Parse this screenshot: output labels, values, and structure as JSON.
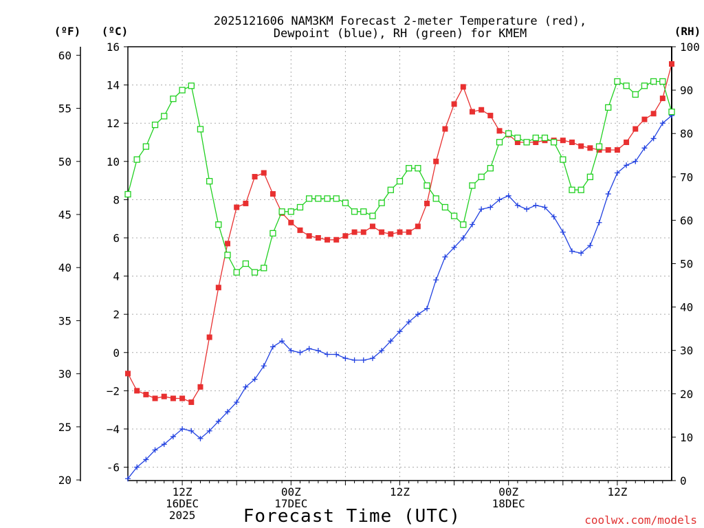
{
  "title_line1": "2025121606 NAM3KM Forecast 2-meter Temperature (red),",
  "title_line2": "Dewpoint (blue), RH (green) for KMEM",
  "unit_f": "(ºF)",
  "unit_c": "(ºC)",
  "unit_rh": "(RH)",
  "x_title": "Forecast Time (UTC)",
  "credit": "coolwx.com/models",
  "x_ticks": [
    {
      "hour": 6,
      "lines": [
        "12Z",
        "16DEC",
        "2025"
      ]
    },
    {
      "hour": 18,
      "lines": [
        "00Z",
        "17DEC"
      ]
    },
    {
      "hour": 30,
      "lines": [
        "12Z"
      ]
    },
    {
      "hour": 42,
      "lines": [
        "00Z",
        "18DEC"
      ]
    },
    {
      "hour": 54,
      "lines": [
        "12Z"
      ]
    }
  ],
  "y_ticks_c": [
    "-6",
    "−4",
    "−2",
    "0",
    "2",
    "4",
    "6",
    "8",
    "10",
    "12",
    "14",
    "16"
  ],
  "y_ticks_f": [
    "20",
    "25",
    "30",
    "35",
    "40",
    "45",
    "50",
    "55",
    "60"
  ],
  "y_ticks_rh": [
    "0",
    "10",
    "20",
    "30",
    "40",
    "50",
    "60",
    "70",
    "80",
    "90",
    "100"
  ],
  "chart_data": {
    "type": "line",
    "title": "2025121606 NAM3KM Forecast 2-meter Temperature (red), Dewpoint (blue), RH (green) for KMEM",
    "xlabel": "Forecast Time (UTC)",
    "x_unit": "forecast hour from 2025-12-16 06Z",
    "xlim": [
      0,
      60
    ],
    "ylim_c": [
      -6.7,
      16
    ],
    "ylim_f": [
      19.94,
      60.8
    ],
    "ylim_rh": [
      0,
      100
    ],
    "grid": true,
    "series": [
      {
        "name": "2-meter Temperature",
        "color": "#e83030",
        "marker": "filled-square",
        "axis": "C",
        "x": [
          0,
          1,
          2,
          3,
          4,
          5,
          6,
          7,
          8,
          9,
          10,
          11,
          12,
          13,
          14,
          15,
          16,
          17,
          18,
          19,
          20,
          21,
          22,
          23,
          24,
          25,
          26,
          27,
          28,
          29,
          30,
          31,
          32,
          33,
          34,
          35,
          36,
          37,
          38,
          39,
          40,
          41,
          42,
          43,
          44,
          45,
          46,
          47,
          48,
          49,
          50,
          51,
          52,
          53,
          54,
          55,
          56,
          57,
          58,
          59,
          60
        ],
        "values": [
          -1.1,
          -2.0,
          -2.2,
          -2.4,
          -2.3,
          -2.4,
          -2.4,
          -2.6,
          -1.8,
          0.8,
          3.4,
          5.7,
          7.6,
          7.8,
          9.2,
          9.4,
          8.3,
          7.3,
          6.8,
          6.4,
          6.1,
          6.0,
          5.9,
          5.9,
          6.1,
          6.3,
          6.3,
          6.6,
          6.3,
          6.2,
          6.3,
          6.3,
          6.6,
          7.8,
          10.0,
          11.7,
          13.0,
          13.9,
          12.6,
          12.7,
          12.4,
          11.6,
          11.4,
          11.0,
          11.0,
          11.0,
          11.1,
          11.1,
          11.1,
          11.0,
          10.8,
          10.7,
          10.6,
          10.6,
          10.6,
          11.0,
          11.7,
          12.2,
          12.5,
          13.3,
          15.1
        ]
      },
      {
        "name": "Dewpoint",
        "color": "#2040e0",
        "marker": "plus",
        "axis": "C",
        "x": [
          0,
          1,
          2,
          3,
          4,
          5,
          6,
          7,
          8,
          9,
          10,
          11,
          12,
          13,
          14,
          15,
          16,
          17,
          18,
          19,
          20,
          21,
          22,
          23,
          24,
          25,
          26,
          27,
          28,
          29,
          30,
          31,
          32,
          33,
          34,
          35,
          36,
          37,
          38,
          39,
          40,
          41,
          42,
          43,
          44,
          45,
          46,
          47,
          48,
          49,
          50,
          51,
          52,
          53,
          54,
          55,
          56,
          57,
          58,
          59,
          60
        ],
        "values": [
          -6.6,
          -6.0,
          -5.6,
          -5.1,
          -4.8,
          -4.4,
          -4.0,
          -4.1,
          -4.5,
          -4.1,
          -3.6,
          -3.1,
          -2.6,
          -1.8,
          -1.4,
          -0.7,
          0.3,
          0.6,
          0.1,
          0.0,
          0.2,
          0.1,
          -0.1,
          -0.1,
          -0.3,
          -0.4,
          -0.4,
          -0.3,
          0.1,
          0.6,
          1.1,
          1.6,
          2.0,
          2.3,
          3.8,
          5.0,
          5.5,
          6.0,
          6.7,
          7.5,
          7.6,
          8.0,
          8.2,
          7.7,
          7.5,
          7.7,
          7.6,
          7.1,
          6.3,
          5.3,
          5.2,
          5.6,
          6.8,
          8.3,
          9.4,
          9.8,
          10.0,
          10.7,
          11.2,
          12.0,
          12.4
        ]
      },
      {
        "name": "RH",
        "color": "#20d020",
        "marker": "open-square",
        "axis": "RH",
        "x": [
          0,
          1,
          2,
          3,
          4,
          5,
          6,
          7,
          8,
          9,
          10,
          11,
          12,
          13,
          14,
          15,
          16,
          17,
          18,
          19,
          20,
          21,
          22,
          23,
          24,
          25,
          26,
          27,
          28,
          29,
          30,
          31,
          32,
          33,
          34,
          35,
          36,
          37,
          38,
          39,
          40,
          41,
          42,
          43,
          44,
          45,
          46,
          47,
          48,
          49,
          50,
          51,
          52,
          53,
          54,
          55,
          56,
          57,
          58,
          59,
          60
        ],
        "values": [
          66,
          74,
          77,
          82,
          84,
          88,
          90,
          91,
          81,
          69,
          59,
          52,
          48,
          50,
          48,
          49,
          57,
          62,
          62,
          63,
          65,
          65,
          65,
          65,
          64,
          62,
          62,
          61,
          64,
          67,
          69,
          72,
          72,
          68,
          65,
          63,
          61,
          59,
          68,
          70,
          72,
          78,
          80,
          79,
          78,
          79,
          79,
          78,
          74,
          67,
          67,
          70,
          77,
          86,
          92,
          91,
          89,
          91,
          92,
          92,
          85
        ]
      }
    ]
  }
}
